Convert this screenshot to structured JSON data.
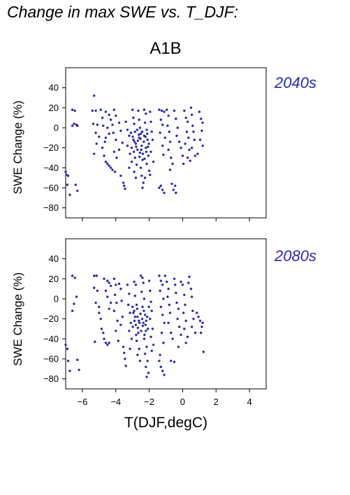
{
  "figure": {
    "title": "Change in max SWE vs. T_DJF:",
    "scenario": "A1B",
    "xlabel": "T(DJF,degC)"
  },
  "chart_data": [
    {
      "type": "scatter",
      "period_label": "2040s",
      "ylabel": "SWE Change (%)",
      "xlim": [
        -7,
        5
      ],
      "ylim": [
        -90,
        60
      ],
      "xticks": [
        -6,
        -4,
        -2,
        0,
        2,
        4
      ],
      "xtick_labels": [
        "−6",
        "−4",
        "−2",
        "0",
        "2",
        "4"
      ],
      "yticks": [
        40,
        20,
        0,
        -20,
        -40,
        -60,
        -80
      ],
      "ytick_labels": [
        "40",
        "20",
        "0",
        "−20",
        "−40",
        "−60",
        "−80"
      ],
      "marker_color": "#2a2ab0",
      "points": [
        [
          -7.0,
          -44
        ],
        [
          -6.95,
          -47
        ],
        [
          -6.85,
          -48
        ],
        [
          -6.9,
          -57
        ],
        [
          -6.75,
          -67
        ],
        [
          -6.4,
          -57
        ],
        [
          -6.3,
          -63
        ],
        [
          -6.6,
          18
        ],
        [
          -6.45,
          17
        ],
        [
          -6.5,
          4
        ],
        [
          -6.6,
          2
        ],
        [
          -6.35,
          3
        ],
        [
          -6.3,
          2
        ],
        [
          -5.3,
          32
        ],
        [
          -5.4,
          17
        ],
        [
          -5.2,
          17
        ],
        [
          -5.35,
          4
        ],
        [
          -5.1,
          3
        ],
        [
          -5.2,
          -5
        ],
        [
          -5.0,
          -9
        ],
        [
          -5.15,
          -16
        ],
        [
          -5.3,
          -26
        ],
        [
          -4.9,
          18
        ],
        [
          -4.8,
          10
        ],
        [
          -4.75,
          2
        ],
        [
          -4.65,
          -14
        ],
        [
          -4.8,
          -20
        ],
        [
          -4.7,
          -28
        ],
        [
          -4.6,
          -34
        ],
        [
          -4.5,
          -36
        ],
        [
          -4.4,
          -38
        ],
        [
          -4.3,
          -40
        ],
        [
          -4.2,
          -42
        ],
        [
          -4.6,
          16
        ],
        [
          -4.4,
          13
        ],
        [
          -4.3,
          8
        ],
        [
          -4.2,
          3
        ],
        [
          -4.5,
          0
        ],
        [
          -4.4,
          -6
        ],
        [
          -4.6,
          -10
        ],
        [
          -4.1,
          18
        ],
        [
          -4.0,
          12
        ],
        [
          -4.15,
          -5
        ],
        [
          -4.0,
          -12
        ],
        [
          -4.1,
          -24
        ],
        [
          -3.95,
          -30
        ],
        [
          -4.05,
          -44
        ],
        [
          -3.8,
          5
        ],
        [
          -3.7,
          -3
        ],
        [
          -3.6,
          -15
        ],
        [
          -3.8,
          -22
        ],
        [
          -3.7,
          -48
        ],
        [
          -3.55,
          -55
        ],
        [
          -3.5,
          -58
        ],
        [
          -3.45,
          -61
        ],
        [
          -3.4,
          6
        ],
        [
          -3.3,
          -2
        ],
        [
          -3.2,
          -8
        ],
        [
          -3.3,
          -18
        ],
        [
          -3.15,
          -26
        ],
        [
          -3.05,
          -34
        ],
        [
          -3.2,
          -40
        ],
        [
          -3.0,
          18
        ],
        [
          -2.95,
          10
        ],
        [
          -2.9,
          4
        ],
        [
          -2.85,
          -4
        ],
        [
          -2.95,
          -12
        ],
        [
          -2.8,
          -16
        ],
        [
          -2.7,
          -22
        ],
        [
          -2.85,
          -30
        ],
        [
          -2.75,
          -37
        ],
        [
          -2.9,
          -44
        ],
        [
          -2.8,
          -50
        ],
        [
          -2.65,
          17
        ],
        [
          -2.6,
          8
        ],
        [
          -2.55,
          0
        ],
        [
          -2.5,
          -6
        ],
        [
          -2.6,
          -10
        ],
        [
          -2.45,
          -18
        ],
        [
          -2.55,
          -25
        ],
        [
          -2.4,
          -32
        ],
        [
          -2.5,
          -40
        ],
        [
          -2.45,
          -48
        ],
        [
          -2.35,
          -55
        ],
        [
          -2.4,
          -60
        ],
        [
          -2.3,
          18
        ],
        [
          -2.2,
          14
        ],
        [
          -2.25,
          5
        ],
        [
          -2.15,
          -2
        ],
        [
          -2.3,
          -8
        ],
        [
          -2.1,
          -12
        ],
        [
          -2.2,
          -20
        ],
        [
          -2.05,
          -28
        ],
        [
          -2.15,
          -36
        ],
        [
          -2.0,
          -43
        ],
        [
          -2.25,
          -50
        ],
        [
          -1.95,
          16
        ],
        [
          -1.9,
          6
        ],
        [
          -1.85,
          -4
        ],
        [
          -1.8,
          -12
        ],
        [
          -1.9,
          -24
        ],
        [
          -1.75,
          -34
        ],
        [
          -1.95,
          -47
        ],
        [
          -3.1,
          -5
        ],
        [
          -2.98,
          -9
        ],
        [
          -2.88,
          -14
        ],
        [
          -2.72,
          -2
        ],
        [
          -2.62,
          -7
        ],
        [
          -2.52,
          -11
        ],
        [
          -2.42,
          -4
        ],
        [
          -2.32,
          -14
        ],
        [
          -2.22,
          -9
        ],
        [
          -2.12,
          -6
        ],
        [
          -2.02,
          -16
        ],
        [
          -3.05,
          -20
        ],
        [
          -2.92,
          -24
        ],
        [
          -2.78,
          -19
        ],
        [
          -2.68,
          -13
        ],
        [
          -2.58,
          -29
        ],
        [
          -2.48,
          -22
        ],
        [
          -2.38,
          -26
        ],
        [
          -2.28,
          -31
        ],
        [
          -2.18,
          -24
        ],
        [
          -2.08,
          -19
        ],
        [
          -1.4,
          18
        ],
        [
          -1.25,
          17
        ],
        [
          -1.1,
          16
        ],
        [
          -1.3,
          8
        ],
        [
          -1.2,
          3
        ],
        [
          -1.35,
          -5
        ],
        [
          -1.05,
          -10
        ],
        [
          -1.2,
          -18
        ],
        [
          -1.15,
          -27
        ],
        [
          -1.3,
          -58
        ],
        [
          -1.2,
          -62
        ],
        [
          -1.4,
          -60
        ],
        [
          -1.1,
          -65
        ],
        [
          -0.95,
          18
        ],
        [
          -0.85,
          12
        ],
        [
          -0.9,
          2
        ],
        [
          -0.8,
          -4
        ],
        [
          -0.75,
          -14
        ],
        [
          -0.85,
          -22
        ],
        [
          -0.7,
          -30
        ],
        [
          -0.6,
          -36
        ],
        [
          -0.75,
          -42
        ],
        [
          -0.65,
          -56
        ],
        [
          -0.55,
          -62
        ],
        [
          -0.45,
          -58
        ],
        [
          -0.4,
          -65
        ],
        [
          -0.5,
          17
        ],
        [
          -0.4,
          9
        ],
        [
          -0.3,
          0
        ],
        [
          -0.35,
          -8
        ],
        [
          -0.2,
          -14
        ],
        [
          -0.1,
          -20
        ],
        [
          0.0,
          -28
        ],
        [
          0.05,
          -36
        ],
        [
          0.1,
          17
        ],
        [
          0.2,
          10
        ],
        [
          0.3,
          6
        ],
        [
          0.25,
          -4
        ],
        [
          0.35,
          -10
        ],
        [
          0.15,
          -16
        ],
        [
          0.4,
          -22
        ],
        [
          0.3,
          -30
        ],
        [
          0.45,
          -33
        ],
        [
          0.5,
          20
        ],
        [
          0.55,
          13
        ],
        [
          0.6,
          2
        ],
        [
          0.65,
          -4
        ],
        [
          0.7,
          -12
        ],
        [
          0.55,
          -20
        ],
        [
          0.75,
          -28
        ],
        [
          1.0,
          16
        ],
        [
          1.1,
          9
        ],
        [
          1.2,
          5
        ],
        [
          1.15,
          -3
        ],
        [
          1.05,
          -12
        ],
        [
          1.2,
          -18
        ],
        [
          0.9,
          -26
        ]
      ]
    },
    {
      "type": "scatter",
      "period_label": "2080s",
      "ylabel": "SWE Change (%)",
      "xlim": [
        -7,
        5
      ],
      "ylim": [
        -90,
        60
      ],
      "xticks": [
        -6,
        -4,
        -2,
        0,
        2,
        4
      ],
      "xtick_labels": [
        "−6",
        "−4",
        "−2",
        "0",
        "2",
        "4"
      ],
      "yticks": [
        40,
        20,
        0,
        -20,
        -40,
        -60,
        -80
      ],
      "ytick_labels": [
        "40",
        "20",
        "0",
        "−20",
        "−40",
        "−60",
        "−80"
      ],
      "marker_color": "#2a2ab0",
      "points": [
        [
          -7.0,
          -46
        ],
        [
          -6.9,
          -50
        ],
        [
          -6.85,
          -62
        ],
        [
          -6.75,
          -72
        ],
        [
          -6.3,
          -61
        ],
        [
          -6.2,
          -71
        ],
        [
          -6.6,
          23
        ],
        [
          -6.45,
          21
        ],
        [
          -6.35,
          2
        ],
        [
          -6.5,
          -5
        ],
        [
          -6.6,
          -12
        ],
        [
          -5.3,
          23
        ],
        [
          -5.15,
          23
        ],
        [
          -5.3,
          11
        ],
        [
          -5.1,
          8
        ],
        [
          -5.2,
          -4
        ],
        [
          -5.0,
          -8
        ],
        [
          -5.25,
          -43
        ],
        [
          -5.0,
          -14
        ],
        [
          -4.9,
          -20
        ],
        [
          -4.85,
          -30
        ],
        [
          -4.75,
          -34
        ],
        [
          -4.7,
          -40
        ],
        [
          -4.6,
          -44
        ],
        [
          -4.5,
          -46
        ],
        [
          -4.4,
          -44
        ],
        [
          -4.7,
          20
        ],
        [
          -4.5,
          18
        ],
        [
          -4.4,
          16
        ],
        [
          -4.3,
          13
        ],
        [
          -4.6,
          8
        ],
        [
          -4.5,
          2
        ],
        [
          -4.3,
          -4
        ],
        [
          -4.4,
          -10
        ],
        [
          -4.1,
          20
        ],
        [
          -4.0,
          14
        ],
        [
          -4.05,
          4
        ],
        [
          -3.95,
          -4
        ],
        [
          -4.1,
          -12
        ],
        [
          -3.9,
          -22
        ],
        [
          -4.0,
          -32
        ],
        [
          -3.85,
          -42
        ],
        [
          -3.8,
          15
        ],
        [
          -3.7,
          10
        ],
        [
          -3.65,
          -2
        ],
        [
          -3.6,
          -18
        ],
        [
          -3.7,
          -26
        ],
        [
          -3.55,
          -48
        ],
        [
          -3.5,
          -54
        ],
        [
          -3.45,
          -60
        ],
        [
          -3.4,
          -67
        ],
        [
          -3.3,
          14
        ],
        [
          -3.2,
          5
        ],
        [
          -3.25,
          -6
        ],
        [
          -3.15,
          -14
        ],
        [
          -3.1,
          -24
        ],
        [
          -3.2,
          -32
        ],
        [
          -3.05,
          -40
        ],
        [
          -3.15,
          -50
        ],
        [
          -2.9,
          17
        ],
        [
          -2.8,
          14
        ],
        [
          -2.85,
          3
        ],
        [
          -2.75,
          -6
        ],
        [
          -2.9,
          -12
        ],
        [
          -2.7,
          -18
        ],
        [
          -2.8,
          -26
        ],
        [
          -2.65,
          -34
        ],
        [
          -2.75,
          -42
        ],
        [
          -2.6,
          -50
        ],
        [
          -2.7,
          -56
        ],
        [
          -2.55,
          -62
        ],
        [
          -2.5,
          23
        ],
        [
          -2.4,
          21
        ],
        [
          -2.35,
          16
        ],
        [
          -2.45,
          7
        ],
        [
          -2.3,
          0
        ],
        [
          -2.4,
          -8
        ],
        [
          -2.25,
          -16
        ],
        [
          -2.35,
          -24
        ],
        [
          -2.2,
          -32
        ],
        [
          -2.3,
          -40
        ],
        [
          -2.15,
          -48
        ],
        [
          -2.25,
          -55
        ],
        [
          -2.1,
          -62
        ],
        [
          -2.2,
          -68
        ],
        [
          -2.05,
          -74
        ],
        [
          -2.15,
          -78
        ],
        [
          -2.0,
          18
        ],
        [
          -1.95,
          8
        ],
        [
          -1.9,
          -3
        ],
        [
          -1.85,
          -12
        ],
        [
          -1.95,
          -20
        ],
        [
          -1.8,
          -30
        ],
        [
          -1.9,
          -38
        ],
        [
          -1.75,
          -46
        ],
        [
          -1.85,
          -52
        ],
        [
          -3.0,
          -8
        ],
        [
          -2.95,
          -14
        ],
        [
          -2.85,
          -18
        ],
        [
          -2.72,
          -10
        ],
        [
          -2.62,
          -22
        ],
        [
          -2.52,
          -15
        ],
        [
          -2.42,
          -20
        ],
        [
          -2.32,
          -12
        ],
        [
          -2.22,
          -26
        ],
        [
          -2.12,
          -18
        ],
        [
          -2.02,
          -8
        ],
        [
          -2.98,
          -28
        ],
        [
          -2.88,
          -22
        ],
        [
          -2.78,
          -36
        ],
        [
          -2.68,
          -29
        ],
        [
          -2.58,
          -24
        ],
        [
          -2.48,
          -32
        ],
        [
          -2.38,
          -27
        ],
        [
          -2.28,
          -36
        ],
        [
          -2.18,
          -22
        ],
        [
          -2.08,
          -30
        ],
        [
          -1.4,
          23
        ],
        [
          -1.3,
          18
        ],
        [
          -1.2,
          14
        ],
        [
          -1.35,
          8
        ],
        [
          -1.15,
          0
        ],
        [
          -1.3,
          -8
        ],
        [
          -1.2,
          -16
        ],
        [
          -1.1,
          -24
        ],
        [
          -1.25,
          -34
        ],
        [
          -1.15,
          -44
        ],
        [
          -1.4,
          -62
        ],
        [
          -1.3,
          -68
        ],
        [
          -1.2,
          -72
        ],
        [
          -1.1,
          -76
        ],
        [
          -1.35,
          -56
        ],
        [
          -1.05,
          23
        ],
        [
          -0.95,
          17
        ],
        [
          -0.85,
          10
        ],
        [
          -0.9,
          2
        ],
        [
          -0.8,
          -6
        ],
        [
          -0.75,
          -14
        ],
        [
          -0.85,
          -24
        ],
        [
          -0.7,
          -34
        ],
        [
          -0.6,
          -40
        ],
        [
          -0.7,
          -62
        ],
        [
          -0.5,
          -63
        ],
        [
          -0.5,
          20
        ],
        [
          -0.45,
          14
        ],
        [
          -0.4,
          6
        ],
        [
          -0.35,
          -4
        ],
        [
          -0.25,
          -10
        ],
        [
          -0.3,
          -20
        ],
        [
          -0.2,
          -28
        ],
        [
          -0.1,
          -36
        ],
        [
          -0.25,
          -48
        ],
        [
          -0.1,
          17
        ],
        [
          0.0,
          14
        ],
        [
          0.1,
          4
        ],
        [
          0.15,
          -6
        ],
        [
          0.05,
          -14
        ],
        [
          0.2,
          -22
        ],
        [
          0.1,
          -30
        ],
        [
          0.3,
          -38
        ],
        [
          0.2,
          -44
        ],
        [
          0.4,
          22
        ],
        [
          0.35,
          16
        ],
        [
          0.5,
          10
        ],
        [
          0.55,
          2
        ],
        [
          0.6,
          -12
        ],
        [
          0.65,
          -20
        ],
        [
          0.55,
          -28
        ],
        [
          0.75,
          -34
        ],
        [
          0.85,
          -14
        ],
        [
          0.95,
          -18
        ],
        [
          1.05,
          -22
        ],
        [
          1.15,
          -28
        ],
        [
          1.1,
          -34
        ],
        [
          1.2,
          -24
        ],
        [
          1.25,
          -53
        ]
      ]
    }
  ]
}
